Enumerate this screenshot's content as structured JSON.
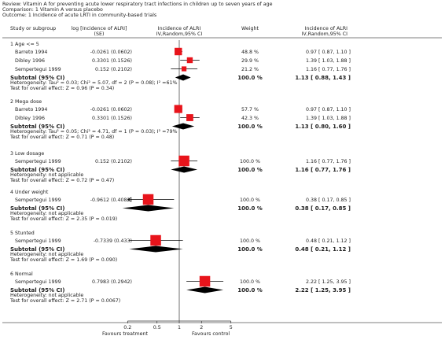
{
  "header": {
    "review": "Review:  Vitamin A for preventing acute lower respiratory tract infections in children up to seven years of age",
    "comparison": "Comparison:  1 Vitamin A versus placebo",
    "outcome": "Outcome:  1 Incidence of acute LRTI in community-based trials"
  },
  "columns": {
    "study": "Study or subgroup",
    "effect_line1": "log [Incidence of ALRI]",
    "effect_line2": "(SE)",
    "plot_line1": "Incidence of ALRI",
    "plot_line2": "IV,Random,95% CI",
    "weight": "Weight",
    "ci_line1": "Incidence of ALRI",
    "ci_line2": "IV,Random,95% CI"
  },
  "footer": {
    "ticks": [
      "0.2",
      "0.5",
      "1",
      "2",
      "5"
    ],
    "favours_left": "Favours treatment",
    "favours_right": "Favours control"
  },
  "chart_data": {
    "type": "forest",
    "scale": "log",
    "xlim": [
      0.2,
      5
    ],
    "xticks": [
      0.2,
      0.5,
      1,
      2,
      5
    ],
    "xtick_labels": [
      "0.2",
      "0.5",
      "1",
      "2",
      "5"
    ],
    "groups": [
      {
        "title": "1 Age <= 5",
        "studies": [
          {
            "name": "Barreto 1994",
            "effect": "-0.0261 (0.0602)",
            "weight": "48.8 %",
            "ci_text": "0.97 [ 0.87, 1.10 ]",
            "est": 0.97,
            "lo": 0.87,
            "hi": 1.1,
            "w": 48.8
          },
          {
            "name": "Dibley 1996",
            "effect": "0.3301 (0.1526)",
            "weight": "29.9 %",
            "ci_text": "1.39 [ 1.03, 1.88 ]",
            "est": 1.39,
            "lo": 1.03,
            "hi": 1.88,
            "w": 29.9
          },
          {
            "name": "Sempertegui 1999",
            "effect": "0.152 (0.2102)",
            "weight": "21.2 %",
            "ci_text": "1.16 [ 0.77, 1.76 ]",
            "est": 1.16,
            "lo": 0.77,
            "hi": 1.76,
            "w": 21.2
          }
        ],
        "subtotal": {
          "label": "Subtotal (95% CI)",
          "weight": "100.0 %",
          "ci_text": "1.13 [ 0.88, 1.43 ]",
          "est": 1.13,
          "lo": 0.88,
          "hi": 1.43
        },
        "heterogeneity": "Heterogeneity: Tau² = 0.03; Chi² = 5.07, df = 2 (P = 0.08); I² =61%",
        "overall": "Test for overall effect: Z = 0.96 (P = 0.34)"
      },
      {
        "title": "2 Mega dose",
        "studies": [
          {
            "name": "Barreto 1994",
            "effect": "-0.0261 (0.0602)",
            "weight": "57.7 %",
            "ci_text": "0.97 [ 0.87, 1.10 ]",
            "est": 0.97,
            "lo": 0.87,
            "hi": 1.1,
            "w": 57.7
          },
          {
            "name": "Dibley 1996",
            "effect": "0.3301 (0.1526)",
            "weight": "42.3 %",
            "ci_text": "1.39 [ 1.03, 1.88 ]",
            "est": 1.39,
            "lo": 1.03,
            "hi": 1.88,
            "w": 42.3
          }
        ],
        "subtotal": {
          "label": "Subtotal (95% CI)",
          "weight": "100.0 %",
          "ci_text": "1.13 [ 0.80, 1.60 ]",
          "est": 1.13,
          "lo": 0.8,
          "hi": 1.6
        },
        "heterogeneity": "Heterogeneity: Tau² = 0.05; Chi² = 4.71, df = 1 (P = 0.03); I² =79%",
        "overall": "Test for overall effect: Z = 0.71 (P = 0.48)"
      },
      {
        "title": "3 Low dosage",
        "studies": [
          {
            "name": "Sempertegui 1999",
            "effect": "0.152 (0.2102)",
            "weight": "100.0 %",
            "ci_text": "1.16 [ 0.77, 1.76 ]",
            "est": 1.16,
            "lo": 0.77,
            "hi": 1.76,
            "w": 100
          }
        ],
        "subtotal": {
          "label": "Subtotal (95% CI)",
          "weight": "100.0 %",
          "ci_text": "1.16 [ 0.77, 1.76 ]",
          "est": 1.16,
          "lo": 0.77,
          "hi": 1.76
        },
        "heterogeneity": "Heterogeneity: not applicable",
        "overall": "Test for overall effect: Z = 0.72 (P = 0.47)"
      },
      {
        "title": "4 Under weight",
        "studies": [
          {
            "name": "Sempertegui 1999",
            "effect": "-0.9612 (0.4082)",
            "weight": "100.0 %",
            "ci_text": "0.38 [ 0.17, 0.85 ]",
            "est": 0.38,
            "lo": 0.17,
            "hi": 0.85,
            "w": 100
          }
        ],
        "subtotal": {
          "label": "Subtotal (95% CI)",
          "weight": "100.0 %",
          "ci_text": "0.38 [ 0.17, 0.85 ]",
          "est": 0.38,
          "lo": 0.17,
          "hi": 0.85
        },
        "heterogeneity": "Heterogeneity: not applicable",
        "overall": "Test for overall effect: Z = 2.35 (P = 0.019)"
      },
      {
        "title": "5 Stunted",
        "studies": [
          {
            "name": "Sempertegui 1999",
            "effect": "-0.7339 (0.433)",
            "weight": "100.0 %",
            "ci_text": "0.48 [ 0.21, 1.12 ]",
            "est": 0.48,
            "lo": 0.21,
            "hi": 1.12,
            "w": 100
          }
        ],
        "subtotal": {
          "label": "Subtotal (95% CI)",
          "weight": "100.0 %",
          "ci_text": "0.48 [ 0.21, 1.12 ]",
          "est": 0.48,
          "lo": 0.21,
          "hi": 1.12
        },
        "heterogeneity": "Heterogeneity: not applicable",
        "overall": "Test for overall effect: Z = 1.69 (P = 0.090)"
      },
      {
        "title": "6 Normal",
        "studies": [
          {
            "name": "Sempertegui 1999",
            "effect": "0.7983 (0.2942)",
            "weight": "100.0 %",
            "ci_text": "2.22 [ 1.25, 3.95 ]",
            "est": 2.22,
            "lo": 1.25,
            "hi": 3.95,
            "w": 100
          }
        ],
        "subtotal": {
          "label": "Subtotal (95% CI)",
          "weight": "100.0 %",
          "ci_text": "2.22 [ 1.25, 3.95 ]",
          "est": 2.22,
          "lo": 1.25,
          "hi": 3.95
        },
        "heterogeneity": "Heterogeneity: not applicable",
        "overall": "Test for overall effect: Z = 2.71 (P = 0.0067)"
      }
    ]
  },
  "colors": {
    "square": "#e8141b",
    "diamond": "#000000",
    "text": "#222222",
    "rule": "#555555"
  }
}
